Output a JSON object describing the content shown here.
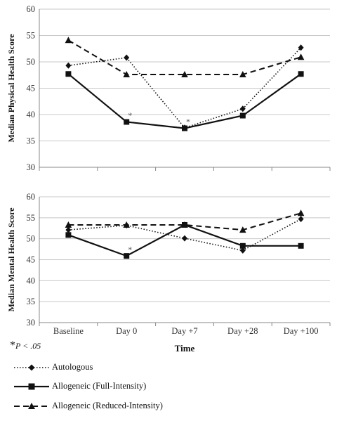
{
  "chart_data": [
    {
      "type": "line",
      "ylabel": "Median Physical Health Score",
      "ylim": [
        30,
        60
      ],
      "yticks": [
        30,
        35,
        40,
        45,
        50,
        55,
        60
      ],
      "categories": [
        "Baseline",
        "Day 0",
        "Day +7",
        "Day +28",
        "Day +100"
      ],
      "series": [
        {
          "name": "Autologous",
          "values": [
            49.3,
            50.8,
            37.5,
            41.1,
            52.7
          ],
          "style": "dotted",
          "marker": "diamond"
        },
        {
          "name": "Allogeneic (Full-Intensity)",
          "values": [
            47.7,
            38.6,
            37.4,
            39.8,
            47.7
          ],
          "style": "solid",
          "marker": "square"
        },
        {
          "name": "Allogeneic (Reduced-Intensity)",
          "values": [
            54.1,
            47.6,
            47.6,
            47.6,
            50.9
          ],
          "style": "dashed",
          "marker": "triangle"
        }
      ],
      "annotations": [
        {
          "text": "*",
          "category": "Day 0",
          "value": 39.1
        },
        {
          "text": "*",
          "category": "Day +7",
          "value": 37.9
        }
      ]
    },
    {
      "type": "line",
      "ylabel": "Median Mental Health Score",
      "xlabel": "Time",
      "ylim": [
        30,
        60
      ],
      "yticks": [
        30,
        35,
        40,
        45,
        50,
        55,
        60
      ],
      "categories": [
        "Baseline",
        "Day 0",
        "Day +7",
        "Day +28",
        "Day +100"
      ],
      "series": [
        {
          "name": "Autologous",
          "values": [
            52.1,
            53.2,
            50.1,
            47.2,
            54.7
          ],
          "style": "dotted",
          "marker": "diamond"
        },
        {
          "name": "Allogeneic (Full-Intensity)",
          "values": [
            50.9,
            45.9,
            53.3,
            48.3,
            48.3
          ],
          "style": "solid",
          "marker": "square"
        },
        {
          "name": "Allogeneic (Reduced-Intensity)",
          "values": [
            53.3,
            53.3,
            53.3,
            52.1,
            56.1
          ],
          "style": "dashed",
          "marker": "triangle"
        }
      ],
      "annotations": [
        {
          "text": "*",
          "category": "Day 0",
          "value": 46.4
        }
      ]
    }
  ],
  "footnote": {
    "star": "*",
    "text": "P < .05"
  },
  "legend": [
    {
      "label": "Autologous",
      "style": "dotted",
      "marker": "diamond"
    },
    {
      "label": "Allogeneic (Full-Intensity)",
      "style": "solid",
      "marker": "square"
    },
    {
      "label": "Allogeneic  (Reduced-Intensity)",
      "style": "dashed",
      "marker": "triangle"
    }
  ]
}
